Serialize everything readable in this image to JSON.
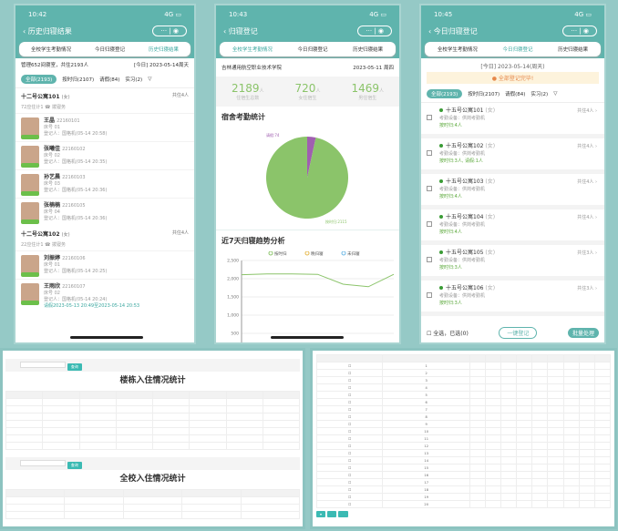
{
  "colors": {
    "accent": "#5fb4ad",
    "green": "#8bc46a",
    "purple": "#a05fb0"
  },
  "tabs": [
    "全校学生考勤情况",
    "今日归寝登记",
    "历史归寝结果"
  ],
  "phone1": {
    "time": "10:42",
    "title": "历史归寝结果",
    "summary": "管理652间寝室，共住2193人",
    "date": "[今日] 2023-05-14周天",
    "filters": [
      "全部(2193)",
      "按时归(2107)",
      "请假(84)",
      "实习(2)"
    ],
    "rooms": [
      {
        "name": "十二号公寓101",
        "tag": "(女)",
        "count": "共住4人",
        "sub": "72应住计1 ☎ 拨寝务",
        "people": [
          {
            "name": "王晶",
            "id": "22160101",
            "bed": "床号 01",
            "reg": "登记人：国格机(05-14 20:58)"
          },
          {
            "name": "张曦佳",
            "id": "22160102",
            "bed": "床号 02",
            "reg": "登记人：国格机(05-14 20:35)"
          },
          {
            "name": "孙艺晨",
            "id": "22160103",
            "bed": "床号 03",
            "reg": "登记人：国格机(05-14 20:36)"
          },
          {
            "name": "张楠楠",
            "id": "22160105",
            "bed": "床号 04",
            "reg": "登记人：国格机(05-14 20:36)"
          }
        ]
      },
      {
        "name": "十二号公寓102",
        "tag": "(女)",
        "count": "共住4人",
        "sub": "22应住计1 ☎ 拨寝务",
        "people": [
          {
            "name": "刘振婷",
            "id": "22160106",
            "bed": "床号 01",
            "reg": "登记人：国格机(05-14 20:25)"
          },
          {
            "name": "王雨欣",
            "id": "22160107",
            "bed": "床号 02",
            "reg": "登记人：国格机(05-14 20:24)",
            "note": "请假2023-05-13 20:49至2023-05-14 20:53"
          }
        ]
      }
    ]
  },
  "phone2": {
    "time": "10:43",
    "title": "归寝登记",
    "school": "吉林通用航空职业技术学院",
    "date": "2023-05-11 周四",
    "stats": [
      {
        "value": "2189",
        "unit": "人",
        "label": "住宿生总数"
      },
      {
        "value": "720",
        "unit": "人",
        "label": "女住宿生"
      },
      {
        "value": "1469",
        "unit": "人",
        "label": "男住宿生"
      }
    ],
    "pie_title": "宿舍考勤统计",
    "line_title": "近7天归寝趋势分析"
  },
  "chart_data": [
    {
      "type": "pie",
      "values": [
        {
          "label": "请假:74",
          "value": 74
        },
        {
          "label": "按时归:2115",
          "value": 2115
        }
      ]
    },
    {
      "type": "line",
      "title": "近7天归寝趋势分析",
      "legend": [
        "按时归",
        "晚归寝",
        "未归寝"
      ],
      "yticks": [
        "2,500",
        "2,000",
        "1,500",
        "1,000",
        "500"
      ],
      "ylim": [
        0,
        2500
      ],
      "series": [
        {
          "name": "按时归",
          "values": [
            2110,
            2130,
            2130,
            2120,
            1850,
            1780,
            2120
          ]
        }
      ]
    }
  ],
  "phone3": {
    "time": "10:45",
    "title": "今日归寝登记",
    "date": "[今日] 2023-05-14(周天)",
    "warn": "全部登记完毕!",
    "filters": [
      "全部(2193)",
      "按时归(2107)",
      "请假(84)",
      "实习(2)"
    ],
    "rooms": [
      {
        "name": "十五号公寓101",
        "tag": "(女)",
        "count": "共住4人",
        "dev": "考勤设备：供岗考勤机",
        "st": "按时归:4人"
      },
      {
        "name": "十五号公寓102",
        "tag": "(女)",
        "count": "共住4人",
        "dev": "考勤设备：供岗考勤机",
        "st": "按时归:3人, 请假:1人"
      },
      {
        "name": "十五号公寓103",
        "tag": "(女)",
        "count": "共住4人",
        "dev": "考勤设备：供岗考勤机",
        "st": "按时归:4人"
      },
      {
        "name": "十五号公寓104",
        "tag": "(女)",
        "count": "共住4人",
        "dev": "考勤设备：供岗考勤机",
        "st": "按时归:4人"
      },
      {
        "name": "十五号公寓105",
        "tag": "(女)",
        "count": "共住3人",
        "dev": "考勤设备：供岗考勤机",
        "st": "按时归:3人"
      },
      {
        "name": "十五号公寓106",
        "tag": "(女)",
        "count": "共住3人",
        "dev": "考勤设备：供岗考勤机",
        "st": "按时归:3人"
      }
    ],
    "select_all": "全选，已选(0)",
    "one_click": "一键登记",
    "batch": "批量处理"
  },
  "desk1": {
    "title1": "楼栋入住情况统计",
    "title2": "全校入住情况统计",
    "query": "查询"
  },
  "desk2": {
    "rows": [
      "1",
      "2",
      "3",
      "4",
      "5",
      "6",
      "7",
      "8",
      "9",
      "10",
      "11",
      "12",
      "13",
      "14",
      "15",
      "16",
      "17",
      "18",
      "19",
      "20"
    ]
  }
}
